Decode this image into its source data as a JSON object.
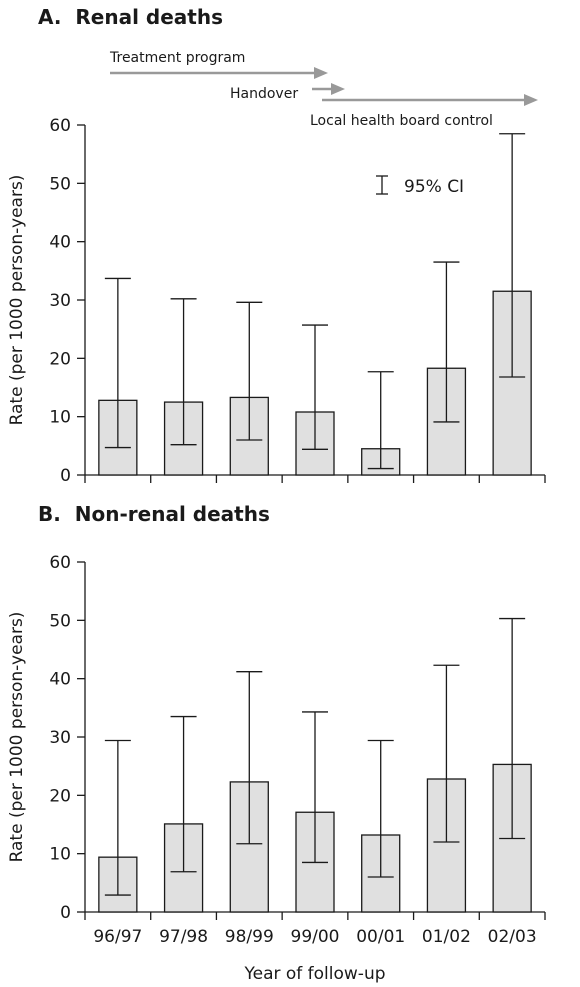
{
  "colors": {
    "bar_fill": "#e0e0e0",
    "bar_stroke": "#1a1a1a",
    "arrow": "#999999"
  },
  "timeline": {
    "phases": [
      "Treatment program",
      "Handover",
      "Local health board control"
    ]
  },
  "ci_legend": "95% CI",
  "chart_data": [
    {
      "type": "bar",
      "title": "A.  Renal deaths",
      "ylabel": "Rate (per 1000 person-years)",
      "xlabel": "",
      "ylim": [
        0,
        60
      ],
      "yticks": [
        0,
        10,
        20,
        30,
        40,
        50,
        60
      ],
      "categories": [
        "96/97",
        "97/98",
        "98/99",
        "99/00",
        "00/01",
        "01/02",
        "02/03"
      ],
      "show_category_labels": false,
      "grid": false,
      "legend": "95% CI (top-right)",
      "values": [
        12.8,
        12.5,
        13.3,
        10.8,
        4.5,
        18.3,
        31.5
      ],
      "ci_lower": [
        4.7,
        5.2,
        6.0,
        4.4,
        1.1,
        9.1,
        16.8
      ],
      "ci_upper": [
        33.7,
        30.2,
        29.6,
        25.7,
        17.7,
        36.5,
        58.5
      ]
    },
    {
      "type": "bar",
      "title": "B.  Non-renal deaths",
      "ylabel": "Rate (per 1000 person-years)",
      "xlabel": "Year of follow-up",
      "ylim": [
        0,
        60
      ],
      "yticks": [
        0,
        10,
        20,
        30,
        40,
        50,
        60
      ],
      "categories": [
        "96/97",
        "97/98",
        "98/99",
        "99/00",
        "00/01",
        "01/02",
        "02/03"
      ],
      "show_category_labels": true,
      "grid": false,
      "values": [
        9.4,
        15.1,
        22.3,
        17.1,
        13.2,
        22.8,
        25.3
      ],
      "ci_lower": [
        2.9,
        6.9,
        11.7,
        8.5,
        6.0,
        12.0,
        12.6
      ],
      "ci_upper": [
        29.4,
        33.5,
        41.2,
        34.3,
        29.4,
        42.3,
        50.3
      ]
    }
  ]
}
